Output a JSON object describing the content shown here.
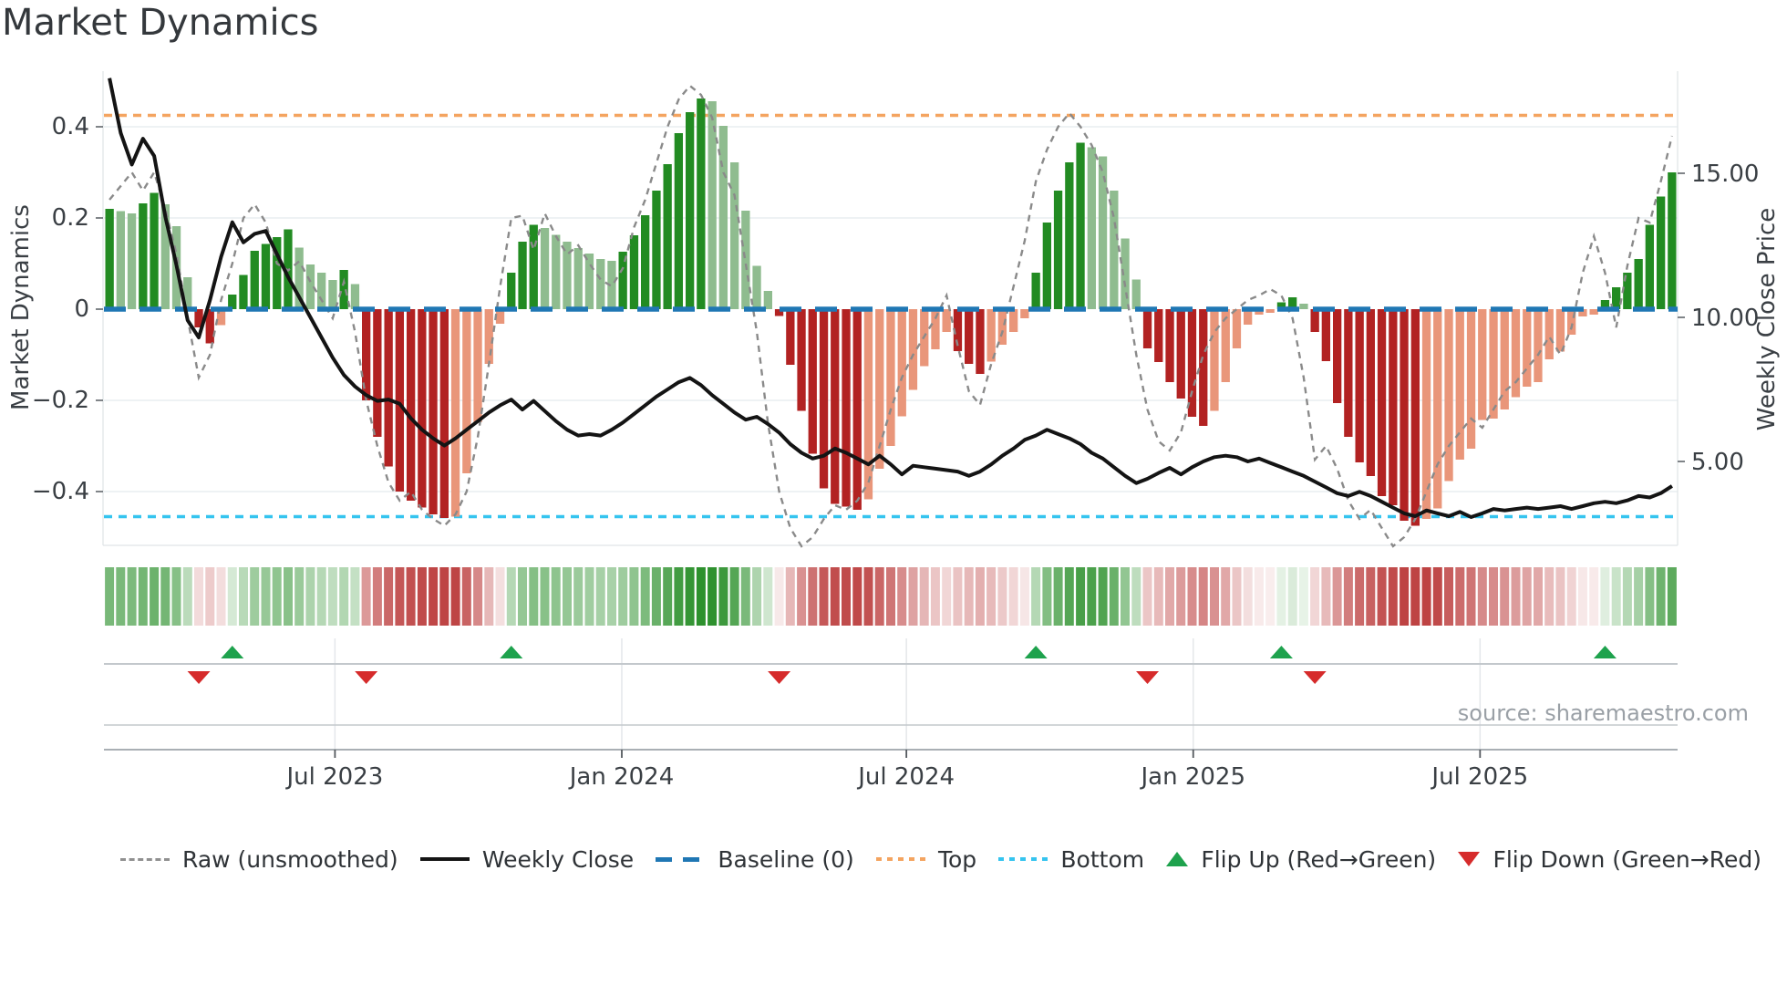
{
  "title": "Market Dynamics",
  "source": "source: sharemaestro.com",
  "left_axis": {
    "label": "Market Dynamics",
    "ticks": [
      {
        "v": 0.4,
        "label": "0.4"
      },
      {
        "v": 0.2,
        "label": "0.2"
      },
      {
        "v": 0.0,
        "label": "0"
      },
      {
        "v": -0.2,
        "label": "−0.2"
      },
      {
        "v": -0.4,
        "label": "−0.4"
      }
    ]
  },
  "right_axis": {
    "label": "Weekly Close Price",
    "ticks": [
      {
        "v": 15,
        "label": "15.00"
      },
      {
        "v": 10,
        "label": "10.00"
      },
      {
        "v": 5,
        "label": "5.00"
      }
    ]
  },
  "x_axis": {
    "ticks": [
      {
        "label": "Jul 2023",
        "week": 20.2
      },
      {
        "label": "Jan 2024",
        "week": 45.9
      },
      {
        "label": "Jul 2024",
        "week": 71.4
      },
      {
        "label": "Jan 2025",
        "week": 97.1
      },
      {
        "label": "Jul 2025",
        "week": 122.8
      }
    ]
  },
  "thresholds": {
    "top": {
      "value": 0.425,
      "label": "Top"
    },
    "baseline": {
      "value": 0.0,
      "label": "Baseline (0)"
    },
    "bottom": {
      "value": -0.455,
      "label": "Bottom"
    }
  },
  "legend": {
    "items": [
      {
        "swatch": "dash-gray",
        "label": "Raw (unsmoothed)"
      },
      {
        "swatch": "solid-black",
        "label": "Weekly Close"
      },
      {
        "swatch": "dash-blue",
        "label": "Baseline (0)"
      },
      {
        "swatch": "dot-orange",
        "label": "Top"
      },
      {
        "swatch": "dot-cyan",
        "label": "Bottom"
      },
      {
        "swatch": "tri-up",
        "label": "Flip Up (Red→Green)"
      },
      {
        "swatch": "tri-down",
        "label": "Flip Down (Green→Red)"
      }
    ]
  },
  "chart_data": {
    "type": "combo",
    "weeks": 141,
    "x_range_note": "weekly data, ~Feb 2023 to ~Nov 2025",
    "left_ylim": [
      -0.52,
      0.53
    ],
    "right_ticks": [
      5,
      10,
      15
    ],
    "grid": "horizontal left-axis gridlines only",
    "legend_position": "bottom row",
    "series": [
      {
        "name": "Market Dynamics (smoothed bars)",
        "type": "bar",
        "axis": "left",
        "values": [
          0.22,
          0.215,
          0.21,
          0.232,
          0.255,
          0.23,
          0.182,
          0.07,
          -0.04,
          -0.075,
          -0.035,
          0.032,
          0.075,
          0.128,
          0.143,
          0.158,
          0.175,
          0.135,
          0.098,
          0.08,
          0.064,
          0.086,
          0.055,
          -0.2,
          -0.28,
          -0.345,
          -0.4,
          -0.42,
          -0.435,
          -0.45,
          -0.458,
          -0.455,
          -0.36,
          -0.248,
          -0.12,
          -0.032,
          0.08,
          0.148,
          0.185,
          0.178,
          0.163,
          0.148,
          0.134,
          0.122,
          0.11,
          0.106,
          0.126,
          0.162,
          0.206,
          0.26,
          0.318,
          0.386,
          0.432,
          0.462,
          0.456,
          0.402,
          0.322,
          0.216,
          0.095,
          0.04,
          -0.015,
          -0.122,
          -0.223,
          -0.317,
          -0.393,
          -0.427,
          -0.433,
          -0.44,
          -0.417,
          -0.35,
          -0.3,
          -0.235,
          -0.177,
          -0.125,
          -0.088,
          -0.05,
          -0.092,
          -0.12,
          -0.142,
          -0.115,
          -0.078,
          -0.05,
          -0.02,
          0.08,
          0.19,
          0.26,
          0.322,
          0.365,
          0.355,
          0.335,
          0.26,
          0.155,
          0.065,
          -0.086,
          -0.116,
          -0.16,
          -0.196,
          -0.236,
          -0.256,
          -0.223,
          -0.16,
          -0.086,
          -0.034,
          -0.012,
          -0.008,
          0.015,
          0.026,
          0.012,
          -0.05,
          -0.114,
          -0.206,
          -0.28,
          -0.336,
          -0.366,
          -0.41,
          -0.43,
          -0.464,
          -0.475,
          -0.46,
          -0.437,
          -0.377,
          -0.33,
          -0.306,
          -0.243,
          -0.24,
          -0.22,
          -0.193,
          -0.17,
          -0.16,
          -0.11,
          -0.093,
          -0.056,
          -0.016,
          -0.012,
          0.02,
          0.048,
          0.08,
          0.11,
          0.185,
          0.247,
          0.3
        ]
      },
      {
        "name": "Raw (unsmoothed)",
        "type": "line",
        "style": "dashed",
        "axis": "left",
        "values": [
          0.24,
          0.27,
          0.3,
          0.26,
          0.3,
          0.22,
          0.12,
          -0.02,
          -0.15,
          -0.1,
          0.02,
          0.1,
          0.2,
          0.23,
          0.19,
          0.1,
          0.085,
          0.105,
          0.06,
          0.02,
          -0.02,
          0.06,
          -0.05,
          -0.2,
          -0.3,
          -0.38,
          -0.42,
          -0.4,
          -0.44,
          -0.46,
          -0.475,
          -0.45,
          -0.4,
          -0.28,
          -0.12,
          0.05,
          0.2,
          0.205,
          0.13,
          0.21,
          0.16,
          0.12,
          0.14,
          0.1,
          0.065,
          0.05,
          0.09,
          0.18,
          0.24,
          0.32,
          0.4,
          0.46,
          0.49,
          0.47,
          0.42,
          0.3,
          0.25,
          0.1,
          -0.05,
          -0.25,
          -0.4,
          -0.48,
          -0.52,
          -0.5,
          -0.46,
          -0.43,
          -0.44,
          -0.42,
          -0.38,
          -0.3,
          -0.22,
          -0.15,
          -0.1,
          -0.06,
          -0.02,
          0.03,
          -0.08,
          -0.18,
          -0.21,
          -0.12,
          -0.05,
          0.05,
          0.15,
          0.28,
          0.35,
          0.4,
          0.43,
          0.4,
          0.36,
          0.3,
          0.2,
          0.05,
          -0.1,
          -0.22,
          -0.29,
          -0.31,
          -0.27,
          -0.18,
          -0.1,
          -0.05,
          -0.02,
          0.0,
          0.02,
          0.03,
          0.044,
          0.03,
          -0.02,
          -0.15,
          -0.33,
          -0.3,
          -0.35,
          -0.42,
          -0.46,
          -0.44,
          -0.48,
          -0.52,
          -0.5,
          -0.46,
          -0.4,
          -0.34,
          -0.3,
          -0.27,
          -0.24,
          -0.26,
          -0.22,
          -0.18,
          -0.16,
          -0.13,
          -0.1,
          -0.06,
          -0.1,
          -0.04,
          0.08,
          0.16,
          0.08,
          -0.04,
          0.095,
          0.2,
          0.19,
          0.28,
          0.38
        ]
      },
      {
        "name": "Weekly Close",
        "type": "line",
        "axis": "right",
        "values": [
          18.3,
          16.4,
          15.3,
          16.2,
          15.6,
          13.5,
          11.8,
          9.9,
          9.3,
          10.6,
          12.1,
          13.3,
          12.6,
          12.9,
          13.0,
          12.2,
          11.4,
          10.7,
          10.0,
          9.3,
          8.6,
          8.0,
          7.6,
          7.3,
          7.1,
          7.15,
          7.0,
          6.5,
          6.1,
          5.8,
          5.55,
          5.8,
          6.1,
          6.4,
          6.7,
          6.95,
          7.15,
          6.8,
          7.1,
          6.75,
          6.4,
          6.1,
          5.9,
          5.95,
          5.9,
          6.1,
          6.35,
          6.65,
          6.95,
          7.25,
          7.5,
          7.75,
          7.9,
          7.65,
          7.3,
          7.0,
          6.7,
          6.45,
          6.55,
          6.3,
          6.0,
          5.6,
          5.3,
          5.1,
          5.2,
          5.45,
          5.3,
          5.1,
          4.9,
          5.2,
          4.9,
          4.55,
          4.85,
          4.8,
          4.75,
          4.7,
          4.65,
          4.5,
          4.65,
          4.9,
          5.2,
          5.45,
          5.75,
          5.9,
          6.1,
          5.95,
          5.8,
          5.6,
          5.3,
          5.1,
          4.8,
          4.5,
          4.25,
          4.4,
          4.6,
          4.78,
          4.55,
          4.8,
          5.0,
          5.15,
          5.2,
          5.15,
          5.0,
          5.1,
          4.95,
          4.8,
          4.65,
          4.5,
          4.3,
          4.1,
          3.9,
          3.8,
          3.95,
          3.8,
          3.6,
          3.4,
          3.2,
          3.1,
          3.3,
          3.2,
          3.1,
          3.25,
          3.07,
          3.2,
          3.35,
          3.3,
          3.35,
          3.4,
          3.35,
          3.4,
          3.45,
          3.35,
          3.45,
          3.55,
          3.6,
          3.55,
          3.65,
          3.8,
          3.75,
          3.9,
          4.15
        ]
      }
    ],
    "markers": {
      "flip_up_weeks": [
        11,
        36,
        83,
        105,
        134
      ],
      "flip_down_weeks": [
        8,
        23,
        60,
        93,
        108
      ]
    },
    "heatmap": {
      "note": "strip below main plot mirrors bar values: diverging white→green / white→red by sign and magnitude",
      "max_abs": 0.46
    }
  },
  "colors": {
    "bar_dark_green": "#228b22",
    "bar_light_green": "#8fbc8f",
    "bar_dark_red": "#b22222",
    "bar_light_red": "#e9967a",
    "close_line": "#141414",
    "raw_line": "#8a8a8a",
    "baseline": "#1f77b4",
    "top_line": "#f4a460",
    "bottom_line": "#35c4ef",
    "flip_up": "#1ea24d",
    "flip_down": "#d62b2b",
    "grid": "#e9edf1",
    "spine": "#e0e4e7",
    "mini_line": "#c3c8cc",
    "mini_axis": "#a9afb4",
    "vgrid": "#e4e7ea",
    "axis_text": "#3a3f44",
    "title_text": "#34383c",
    "source_text": "#9aa0a6"
  }
}
